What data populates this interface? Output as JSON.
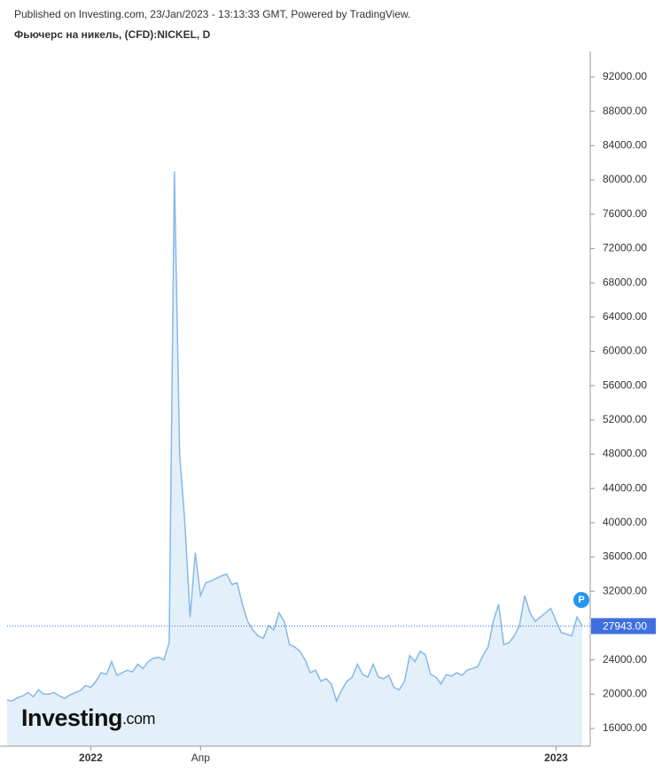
{
  "chart_data": {
    "type": "area",
    "header": "Published on Investing.com, 23/Jan/2023 - 13:13:33 GMT, Powered by TradingView.",
    "title": "Фьючерс на никель, (CFD):NICKEL, D",
    "logo": {
      "name": "Investing",
      "suffix": ".com"
    },
    "badge": "P",
    "color": "#86b8e8",
    "fill": "#e3f0fa",
    "last_color": "#3f6fde",
    "grid": false,
    "categories": [
      null,
      null,
      null,
      null,
      null,
      null,
      null,
      null,
      null,
      null,
      null,
      null,
      null,
      null,
      null,
      null,
      "2022",
      null,
      null,
      null,
      null,
      null,
      null,
      null,
      null,
      null,
      null,
      null,
      null,
      null,
      null,
      null,
      null,
      null,
      null,
      null,
      null,
      "Апр",
      null,
      null,
      null,
      null,
      null,
      null,
      null,
      null,
      null,
      null,
      null,
      null,
      null,
      null,
      null,
      null,
      null,
      null,
      null,
      null,
      null,
      null,
      null,
      null,
      null,
      null,
      null,
      null,
      null,
      null,
      null,
      null,
      null,
      null,
      null,
      null,
      null,
      null,
      null,
      null,
      null,
      null,
      null,
      null,
      null,
      null,
      null,
      null,
      null,
      null,
      null,
      null,
      null,
      null,
      null,
      null,
      null,
      null,
      null,
      null,
      null,
      null,
      null,
      null,
      null,
      null,
      null,
      "2023",
      null,
      null,
      null,
      null,
      null
    ],
    "values": [
      19300,
      19200,
      19600,
      19800,
      20200,
      19700,
      20500,
      20000,
      20000,
      20200,
      19800,
      19500,
      19900,
      20200,
      20400,
      21000,
      20800,
      21500,
      22500,
      22300,
      23800,
      22200,
      22500,
      22800,
      22600,
      23500,
      23000,
      23800,
      24200,
      24300,
      24000,
      26000,
      81000,
      48000,
      40000,
      29000,
      36500,
      31500,
      33000,
      33200,
      33500,
      33800,
      34000,
      32800,
      33000,
      30500,
      28500,
      27500,
      26800,
      26500,
      28000,
      27500,
      29500,
      28500,
      25800,
      25500,
      25000,
      24000,
      22500,
      22800,
      21500,
      21800,
      21200,
      19200,
      20500,
      21500,
      22000,
      23500,
      22300,
      22000,
      23500,
      22000,
      21800,
      22200,
      20800,
      20500,
      21500,
      24500,
      23800,
      25000,
      24600,
      22300,
      22000,
      21200,
      22300,
      22100,
      22500,
      22200,
      22800,
      23000,
      23200,
      24500,
      25500,
      28500,
      30500,
      25800,
      26000,
      26800,
      28000,
      31500,
      29500,
      28500,
      29000,
      29500,
      30000,
      28500,
      27200,
      27000,
      26800,
      29000,
      27943
    ],
    "value_labels": [
      null,
      null,
      null,
      null,
      null,
      null,
      null,
      null,
      null,
      null,
      null,
      null,
      null,
      null,
      null,
      null,
      null,
      null,
      null,
      null,
      null,
      null,
      null,
      null,
      null,
      null,
      null,
      null,
      null,
      null,
      null,
      null,
      null,
      null,
      null,
      null,
      null,
      null,
      null,
      null,
      null,
      null,
      null,
      null,
      null,
      null,
      null,
      null,
      null,
      null,
      null,
      null,
      null,
      null,
      null,
      null,
      null,
      null,
      null,
      null,
      null,
      null,
      null,
      null,
      null,
      null,
      null,
      null,
      null,
      null,
      null,
      null,
      null,
      null,
      null,
      null,
      null,
      null,
      null,
      null,
      null,
      null,
      null,
      null,
      null,
      null,
      null,
      null,
      null,
      null,
      null,
      null,
      null,
      null,
      null,
      null,
      null,
      null,
      null,
      null,
      null,
      null,
      null,
      null,
      null,
      null,
      null,
      null,
      null,
      null,
      "27943.00"
    ],
    "ylim": [
      13930,
      95000
    ],
    "yticks": [
      {
        "value": 16000,
        "label": "16000.00"
      },
      {
        "value": 20000,
        "label": "20000.00"
      },
      {
        "value": 24000,
        "label": "24000.00"
      },
      {
        "value": 28000,
        "label": "28000.00"
      },
      {
        "value": 32000,
        "label": "32000.00"
      },
      {
        "value": 36000,
        "label": "36000.00"
      },
      {
        "value": 40000,
        "label": "40000.00"
      },
      {
        "value": 44000,
        "label": "44000.00"
      },
      {
        "value": 48000,
        "label": "48000.00"
      },
      {
        "value": 52000,
        "label": "52000.00"
      },
      {
        "value": 56000,
        "label": "56000.00"
      },
      {
        "value": 60000,
        "label": "60000.00"
      },
      {
        "value": 64000,
        "label": "64000.00"
      },
      {
        "value": 68000,
        "label": "68000.00"
      },
      {
        "value": 72000,
        "label": "72000.00"
      },
      {
        "value": 76000,
        "label": "76000.00"
      },
      {
        "value": 80000,
        "label": "80000.00"
      },
      {
        "value": 84000,
        "label": "84000.00"
      },
      {
        "value": 88000,
        "label": "88000.00"
      },
      {
        "value": 92000,
        "label": "92000.00"
      }
    ]
  }
}
